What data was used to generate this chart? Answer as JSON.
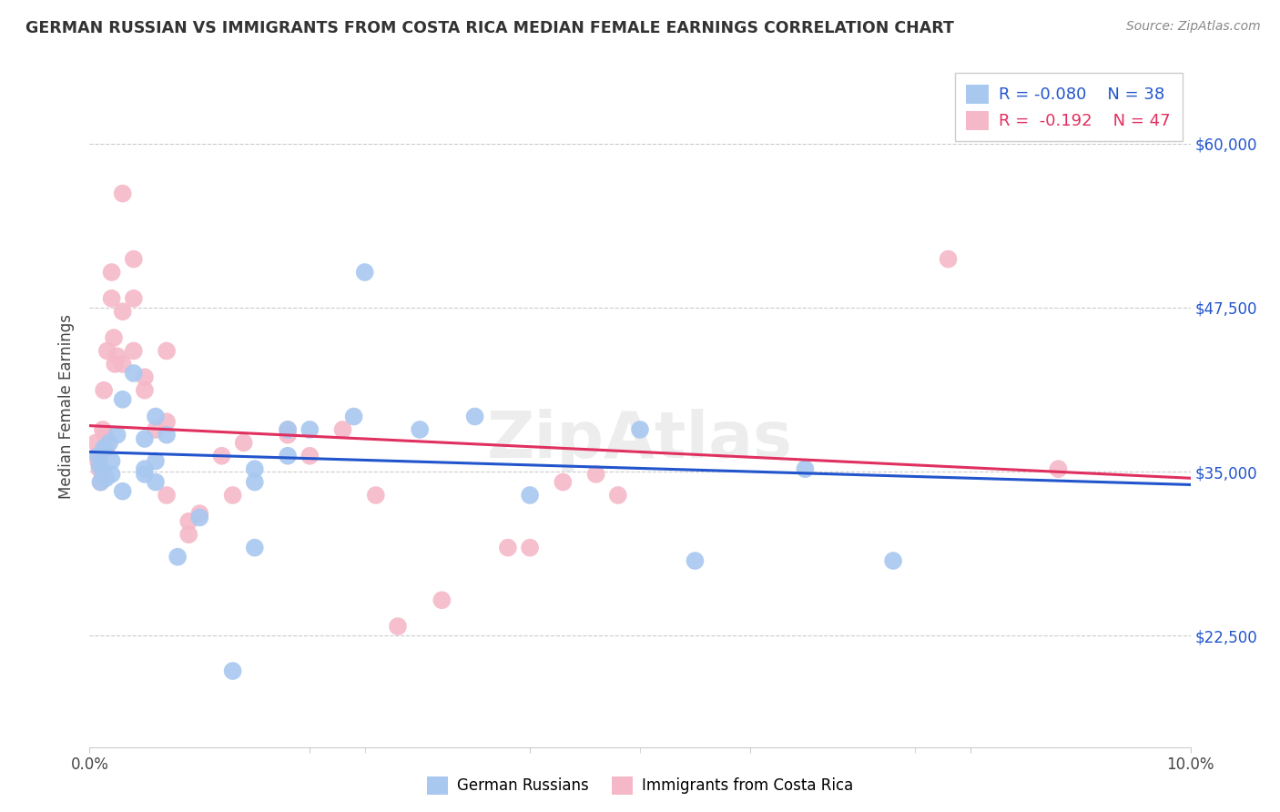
{
  "title": "GERMAN RUSSIAN VS IMMIGRANTS FROM COSTA RICA MEDIAN FEMALE EARNINGS CORRELATION CHART",
  "source": "Source: ZipAtlas.com",
  "ylabel": "Median Female Earnings",
  "yticks": [
    22500,
    35000,
    47500,
    60000
  ],
  "ytick_labels": [
    "$22,500",
    "$35,000",
    "$47,500",
    "$60,000"
  ],
  "xlim": [
    0.0,
    0.1
  ],
  "ylim": [
    14000,
    66000
  ],
  "legend_r_blue": "R = -0.080",
  "legend_n_blue": "N = 38",
  "legend_r_pink": "R =  -0.192",
  "legend_n_pink": "N = 47",
  "blue_color": "#A8C8F0",
  "pink_color": "#F5B8C8",
  "line_blue": "#2255CC",
  "line_pink": "#E03060",
  "text_blue": "#2255CC",
  "text_pink": "#E03060",
  "blue_scatter": [
    [
      0.0008,
      36200
    ],
    [
      0.0009,
      35500
    ],
    [
      0.001,
      34200
    ],
    [
      0.0012,
      35000
    ],
    [
      0.0013,
      36800
    ],
    [
      0.0015,
      34500
    ],
    [
      0.0018,
      37200
    ],
    [
      0.002,
      35800
    ],
    [
      0.002,
      34800
    ],
    [
      0.0025,
      37800
    ],
    [
      0.003,
      40500
    ],
    [
      0.003,
      33500
    ],
    [
      0.004,
      42500
    ],
    [
      0.005,
      35200
    ],
    [
      0.005,
      34800
    ],
    [
      0.005,
      37500
    ],
    [
      0.006,
      39200
    ],
    [
      0.006,
      35800
    ],
    [
      0.006,
      34200
    ],
    [
      0.007,
      37800
    ],
    [
      0.008,
      28500
    ],
    [
      0.01,
      31500
    ],
    [
      0.013,
      19800
    ],
    [
      0.015,
      29200
    ],
    [
      0.015,
      35200
    ],
    [
      0.015,
      34200
    ],
    [
      0.018,
      38200
    ],
    [
      0.018,
      36200
    ],
    [
      0.02,
      38200
    ],
    [
      0.024,
      39200
    ],
    [
      0.025,
      50200
    ],
    [
      0.03,
      38200
    ],
    [
      0.035,
      39200
    ],
    [
      0.04,
      33200
    ],
    [
      0.05,
      38200
    ],
    [
      0.055,
      28200
    ],
    [
      0.065,
      35200
    ],
    [
      0.073,
      28200
    ]
  ],
  "pink_scatter": [
    [
      0.0006,
      37200
    ],
    [
      0.0007,
      36200
    ],
    [
      0.0008,
      35800
    ],
    [
      0.0009,
      35200
    ],
    [
      0.001,
      34200
    ],
    [
      0.0012,
      38200
    ],
    [
      0.0013,
      41200
    ],
    [
      0.0014,
      37800
    ],
    [
      0.0015,
      36800
    ],
    [
      0.0016,
      44200
    ],
    [
      0.002,
      50200
    ],
    [
      0.002,
      48200
    ],
    [
      0.0022,
      45200
    ],
    [
      0.0023,
      43200
    ],
    [
      0.0025,
      43800
    ],
    [
      0.003,
      47200
    ],
    [
      0.003,
      43200
    ],
    [
      0.003,
      56200
    ],
    [
      0.004,
      44200
    ],
    [
      0.004,
      51200
    ],
    [
      0.004,
      48200
    ],
    [
      0.005,
      42200
    ],
    [
      0.005,
      41200
    ],
    [
      0.006,
      38200
    ],
    [
      0.007,
      33200
    ],
    [
      0.007,
      44200
    ],
    [
      0.007,
      38800
    ],
    [
      0.009,
      30200
    ],
    [
      0.009,
      31200
    ],
    [
      0.01,
      31800
    ],
    [
      0.012,
      36200
    ],
    [
      0.013,
      33200
    ],
    [
      0.014,
      37200
    ],
    [
      0.018,
      38200
    ],
    [
      0.018,
      37800
    ],
    [
      0.02,
      36200
    ],
    [
      0.023,
      38200
    ],
    [
      0.026,
      33200
    ],
    [
      0.028,
      23200
    ],
    [
      0.032,
      25200
    ],
    [
      0.038,
      29200
    ],
    [
      0.04,
      29200
    ],
    [
      0.043,
      34200
    ],
    [
      0.046,
      34800
    ],
    [
      0.048,
      33200
    ],
    [
      0.078,
      51200
    ],
    [
      0.088,
      35200
    ]
  ],
  "background_color": "#FFFFFF",
  "grid_color": "#CCCCCC",
  "watermark_text": "ZipAtlas",
  "watermark_color": "#DDDDDD"
}
